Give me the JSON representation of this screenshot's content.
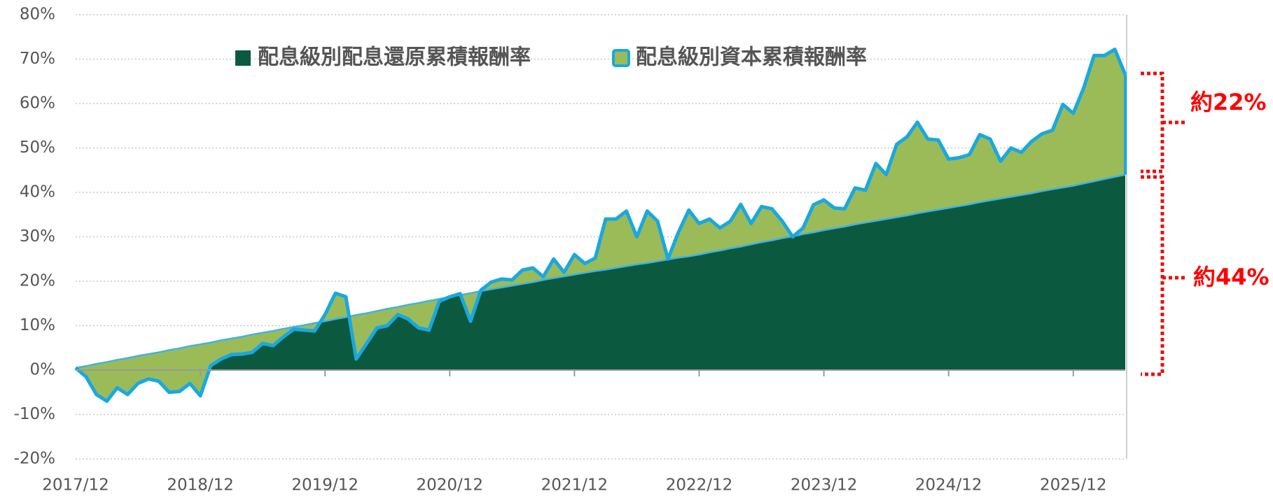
{
  "chart_data": {
    "type": "area",
    "categories": [
      "2017/12",
      null,
      null,
      null,
      null,
      null,
      null,
      null,
      null,
      null,
      null,
      null,
      "2018/12",
      null,
      null,
      null,
      null,
      null,
      null,
      null,
      null,
      null,
      null,
      null,
      "2019/12",
      null,
      null,
      null,
      null,
      null,
      null,
      null,
      null,
      null,
      null,
      null,
      "2020/12",
      null,
      null,
      null,
      null,
      null,
      null,
      null,
      null,
      null,
      null,
      null,
      "2021/12",
      null,
      null,
      null,
      null,
      null,
      null,
      null,
      null,
      null,
      null,
      null,
      "2022/12",
      null,
      null,
      null,
      null,
      null,
      null,
      null,
      null,
      null,
      null,
      null,
      "2023/12",
      null,
      null,
      null,
      null,
      null,
      null,
      null,
      null,
      null,
      null,
      null,
      "2024/12",
      null,
      null,
      null,
      null,
      null,
      null,
      null,
      null,
      null,
      null,
      null,
      "2025/12",
      null,
      null,
      null,
      null,
      null
    ],
    "series": [
      {
        "name": "配息級別配息還原累積報酬率",
        "color": "#0b5a40",
        "line_color": "#3fb3e2",
        "values": [
          0.5,
          0.9,
          1.4,
          1.8,
          2.3,
          2.7,
          3.2,
          3.6,
          4.0,
          4.5,
          4.9,
          5.4,
          5.8,
          6.2,
          6.7,
          7.1,
          7.5,
          8.0,
          8.4,
          8.8,
          9.3,
          9.7,
          10.1,
          10.6,
          11.0,
          11.5,
          11.9,
          12.4,
          12.8,
          13.3,
          13.8,
          14.2,
          14.7,
          15.1,
          15.6,
          16.0,
          16.5,
          16.9,
          17.3,
          17.8,
          18.2,
          18.6,
          19.0,
          19.4,
          19.8,
          20.3,
          20.7,
          21.1,
          21.5,
          21.9,
          22.3,
          22.6,
          23.0,
          23.4,
          23.8,
          24.1,
          24.5,
          24.9,
          25.3,
          25.6,
          26.0,
          26.5,
          26.9,
          27.4,
          27.8,
          28.3,
          28.8,
          29.2,
          29.7,
          30.1,
          30.6,
          31.0,
          31.5,
          31.9,
          32.3,
          32.8,
          33.2,
          33.6,
          34.0,
          34.4,
          34.8,
          35.3,
          35.7,
          36.1,
          36.5,
          36.9,
          37.3,
          37.8,
          38.2,
          38.6,
          39.0,
          39.4,
          39.8,
          40.3,
          40.7,
          41.1,
          41.5,
          42.0,
          42.5,
          43.0,
          43.5,
          44.0
        ]
      },
      {
        "name": "配息級別資本累積報酬率",
        "color": "#9bbb59",
        "line_color": "#19a8e0",
        "values": [
          0.5,
          -1.5,
          -5.5,
          -7,
          -4,
          -5.5,
          -3,
          -2,
          -2.5,
          -5,
          -4.8,
          -3,
          -5.8,
          1,
          2.5,
          3.5,
          3.6,
          4,
          6,
          5.5,
          7.5,
          9.2,
          9,
          8.8,
          12.5,
          17.3,
          16.5,
          2.5,
          6,
          9.5,
          10,
          12.5,
          11.5,
          9.5,
          9,
          15.5,
          16.5,
          17.2,
          11,
          18,
          19.8,
          20.5,
          20.3,
          22.5,
          23,
          21,
          25,
          22,
          26,
          24,
          25.2,
          34,
          34,
          35.8,
          30,
          35.8,
          33.5,
          25,
          31,
          36,
          33,
          34,
          32,
          33.5,
          37.3,
          33,
          36.8,
          36.3,
          33.5,
          30,
          32,
          37.2,
          38.3,
          36.5,
          36.3,
          41,
          40.5,
          46.5,
          44,
          50.8,
          52.5,
          55.8,
          52,
          51.8,
          47.5,
          47.8,
          48.5,
          53,
          52,
          47,
          50,
          49,
          51.5,
          53.2,
          54,
          59.8,
          57.8,
          63.5,
          70.8,
          70.8,
          72.2,
          66.5
        ]
      }
    ],
    "ylim": [
      -20,
      80
    ],
    "yticks": [
      {
        "value": -20,
        "label": "-20%"
      },
      {
        "value": -10,
        "label": "-10%"
      },
      {
        "value": 0,
        "label": "0%"
      },
      {
        "value": 10,
        "label": "10%"
      },
      {
        "value": 20,
        "label": "20%"
      },
      {
        "value": 30,
        "label": "30%"
      },
      {
        "value": 40,
        "label": "40%"
      },
      {
        "value": 50,
        "label": "50%"
      },
      {
        "value": 60,
        "label": "60%"
      },
      {
        "value": 70,
        "label": "70%"
      },
      {
        "value": 80,
        "label": "80%"
      }
    ],
    "grid": true,
    "annotations": [
      "約22%",
      "約44%"
    ],
    "annotation_color": "#ff0000"
  }
}
